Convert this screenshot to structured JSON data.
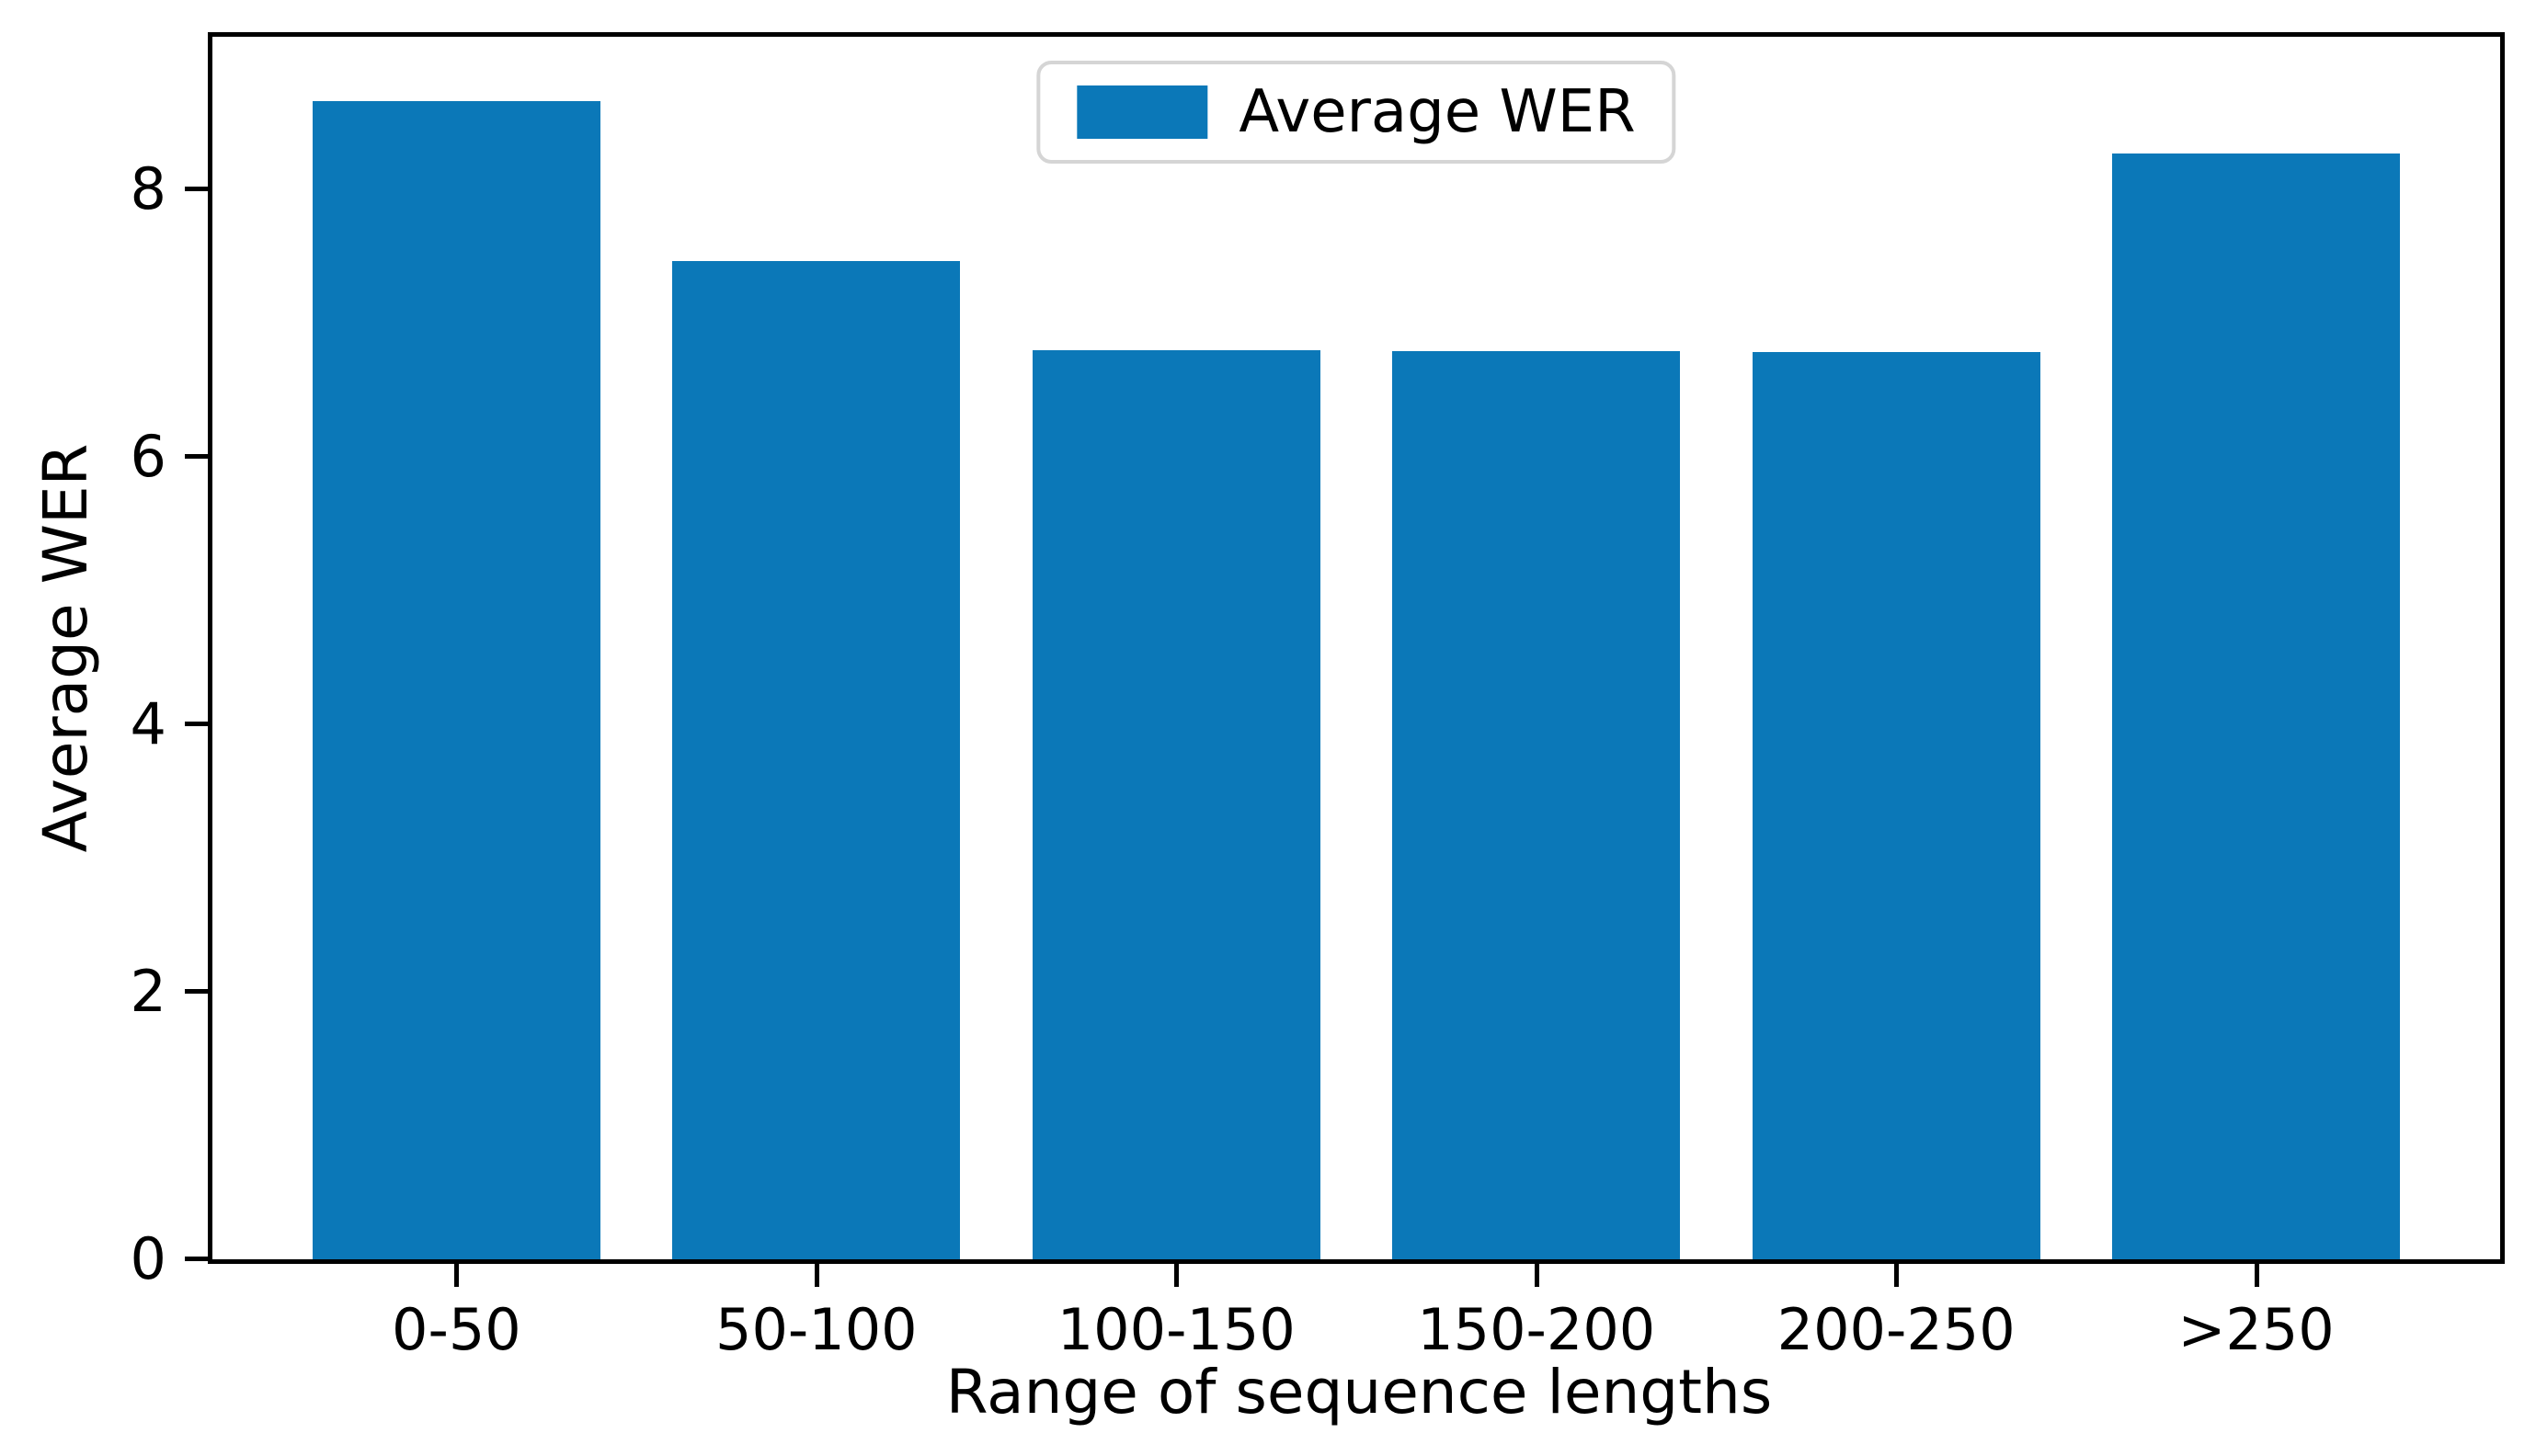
{
  "figure": {
    "background": "#ffffff",
    "spine_color": "#000000"
  },
  "chart_data": {
    "type": "bar",
    "title": "",
    "xlabel": "Range of sequence lengths",
    "ylabel": "Average WER",
    "categories": [
      "0-50",
      "50-100",
      "100-150",
      "150-200",
      "200-250",
      ">250"
    ],
    "values": [
      8.66,
      7.46,
      6.8,
      6.79,
      6.78,
      8.27
    ],
    "yticks": [
      0,
      2,
      4,
      6,
      8
    ],
    "ylim": [
      0,
      9.14
    ],
    "grid": false,
    "bar_color": "#0b78b8",
    "legend": {
      "position": "upper center",
      "border_color": "#d5d5d5",
      "entries": [
        {
          "label": "Average WER",
          "color": "#0b78b8"
        }
      ]
    }
  }
}
